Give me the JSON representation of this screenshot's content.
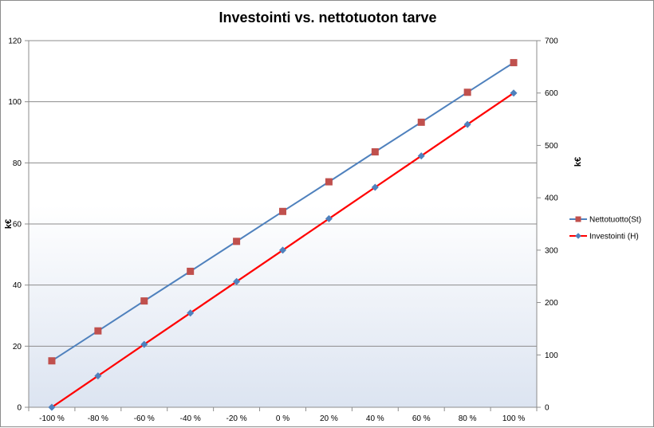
{
  "chart_data": {
    "type": "line",
    "title": "Investointi vs. nettotuoton tarve",
    "xlabel": "",
    "ylabel": "k€",
    "y2label": "k€",
    "x": [
      "-100 %",
      "-80 %",
      "-60 %",
      "-40 %",
      "-20 %",
      "0 %",
      "20 %",
      "40 %",
      "60 %",
      "80 %",
      "100 %"
    ],
    "ylim": [
      0,
      120
    ],
    "yticks": [
      0,
      20,
      40,
      60,
      80,
      100,
      120
    ],
    "y2lim": [
      0,
      700
    ],
    "y2ticks": [
      0,
      100,
      200,
      300,
      400,
      500,
      600,
      700
    ],
    "grid": true,
    "legend_position": "right",
    "series": [
      {
        "name": "Nettotuotto(St)",
        "axis": "left",
        "color": "#4f81bd",
        "marker": "square",
        "marker_color": "#c0504d",
        "values": [
          15.2,
          25.0,
          34.8,
          44.5,
          54.3,
          64.1,
          73.8,
          83.6,
          93.3,
          103.1,
          112.8
        ]
      },
      {
        "name": "Investointi (H)",
        "axis": "right",
        "color": "#ff0000",
        "marker": "diamond",
        "marker_color": "#4f81bd",
        "values": [
          0,
          60,
          120,
          180,
          240,
          300,
          360,
          420,
          480,
          540,
          600
        ]
      }
    ]
  }
}
